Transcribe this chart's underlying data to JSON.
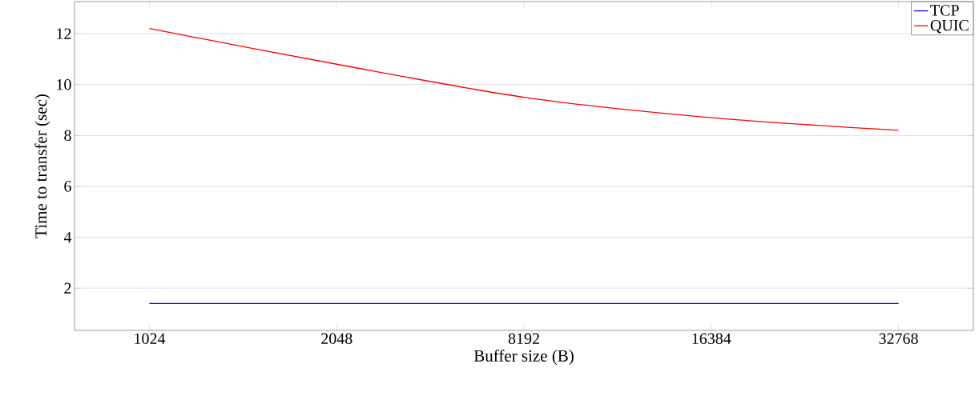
{
  "chart_data": {
    "type": "line",
    "xlabel": "Buffer size (B)",
    "ylabel": "Time to transfer (sec)",
    "categories": [
      "1024",
      "2048",
      "8192",
      "16384",
      "32768"
    ],
    "series": [
      {
        "name": "TCP",
        "color": "#0000ff",
        "values": [
          1.4,
          1.4,
          1.4,
          1.4,
          1.4
        ]
      },
      {
        "name": "QUIC",
        "color": "#ff0000",
        "values": [
          12.2,
          10.8,
          9.5,
          8.7,
          8.2
        ]
      }
    ],
    "ylim": [
      0.34,
      13.26
    ],
    "yticks": [
      2,
      4,
      6,
      8,
      10,
      12
    ],
    "grid": "y",
    "legend": "top right"
  }
}
